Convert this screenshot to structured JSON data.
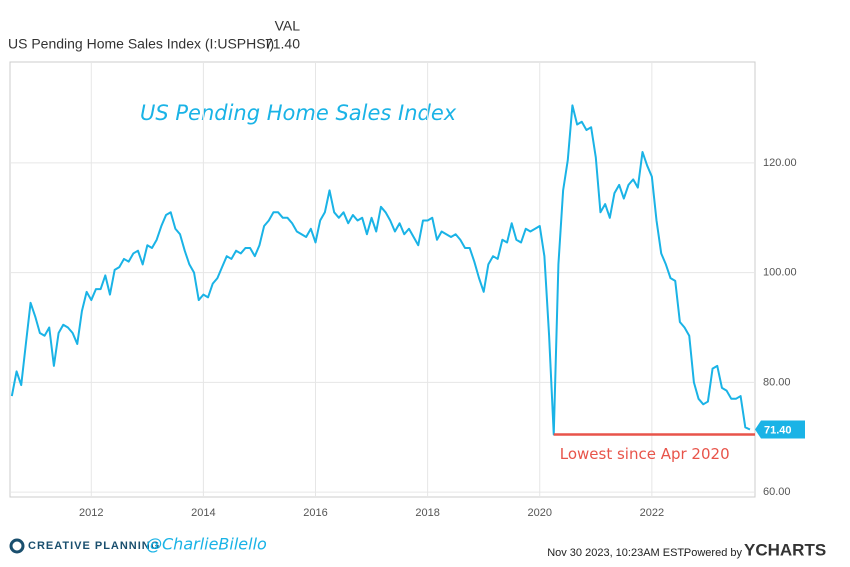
{
  "header": {
    "column": "VAL",
    "series_name": "US Pending Home Sales Index (I:USPHSI)"
  },
  "chart_data": {
    "type": "line",
    "title": "US Pending Home Sales Index",
    "x": [
      2010.583,
      2010.667,
      2010.75,
      2010.833,
      2010.917,
      2011,
      2011.083,
      2011.167,
      2011.25,
      2011.333,
      2011.417,
      2011.5,
      2011.583,
      2011.667,
      2011.75,
      2011.833,
      2011.917,
      2012,
      2012.083,
      2012.167,
      2012.25,
      2012.333,
      2012.417,
      2012.5,
      2012.583,
      2012.667,
      2012.75,
      2012.833,
      2012.917,
      2013,
      2013.083,
      2013.167,
      2013.25,
      2013.333,
      2013.417,
      2013.5,
      2013.583,
      2013.667,
      2013.75,
      2013.833,
      2013.917,
      2014,
      2014.083,
      2014.167,
      2014.25,
      2014.333,
      2014.417,
      2014.5,
      2014.583,
      2014.667,
      2014.75,
      2014.833,
      2014.917,
      2015,
      2015.083,
      2015.167,
      2015.25,
      2015.333,
      2015.417,
      2015.5,
      2015.583,
      2015.667,
      2015.75,
      2015.833,
      2015.917,
      2016,
      2016.083,
      2016.167,
      2016.25,
      2016.333,
      2016.417,
      2016.5,
      2016.583,
      2016.667,
      2016.75,
      2016.833,
      2016.917,
      2017,
      2017.083,
      2017.167,
      2017.25,
      2017.333,
      2017.417,
      2017.5,
      2017.583,
      2017.667,
      2017.75,
      2017.833,
      2017.917,
      2018,
      2018.083,
      2018.167,
      2018.25,
      2018.333,
      2018.417,
      2018.5,
      2018.583,
      2018.667,
      2018.75,
      2018.833,
      2018.917,
      2019,
      2019.083,
      2019.167,
      2019.25,
      2019.333,
      2019.417,
      2019.5,
      2019.583,
      2019.667,
      2019.75,
      2019.833,
      2019.917,
      2020,
      2020.083,
      2020.167,
      2020.25,
      2020.333,
      2020.417,
      2020.5,
      2020.583,
      2020.667,
      2020.75,
      2020.833,
      2020.917,
      2021,
      2021.083,
      2021.167,
      2021.25,
      2021.333,
      2021.417,
      2021.5,
      2021.583,
      2021.667,
      2021.75,
      2021.833,
      2021.917,
      2022,
      2022.083,
      2022.167,
      2022.25,
      2022.333,
      2022.417,
      2022.5,
      2022.583,
      2022.667,
      2022.75,
      2022.833,
      2022.917,
      2023,
      2023.083,
      2023.167,
      2023.25,
      2023.333,
      2023.417,
      2023.5,
      2023.583,
      2023.667,
      2023.75
    ],
    "series": [
      {
        "name": "US Pending Home Sales Index (I:USPHSI)",
        "color": "#1ab3e6",
        "values": [
          77.5,
          82,
          79.5,
          87,
          94.5,
          92,
          89,
          88.5,
          90,
          83,
          89,
          90.5,
          90,
          89,
          87,
          93,
          96.5,
          95,
          97,
          97,
          99.5,
          96,
          100.5,
          101,
          102.5,
          102,
          103.5,
          104,
          101.5,
          105,
          104.5,
          106,
          108.5,
          110.5,
          111,
          108,
          107,
          104,
          101.5,
          100,
          95,
          96,
          95.5,
          98,
          99,
          101,
          103,
          102.5,
          104,
          103.5,
          104.5,
          104.5,
          103,
          105,
          108.5,
          109.5,
          111,
          111,
          110,
          110,
          109,
          107.5,
          107,
          106.5,
          108,
          105.5,
          109.5,
          111,
          115,
          111,
          110,
          111,
          109,
          110.5,
          109.5,
          110,
          107,
          110,
          107.5,
          112,
          111,
          109.5,
          107.5,
          109,
          107,
          108,
          106.5,
          105,
          109.5,
          109.5,
          110,
          106,
          107.5,
          107,
          106.5,
          107,
          106,
          104.5,
          104.5,
          102,
          99,
          96.5,
          101.5,
          103,
          102.5,
          106,
          105.5,
          109,
          106,
          105.5,
          108,
          107.5,
          108,
          108.5,
          103,
          88.5,
          70.5,
          101.5,
          115,
          120.5,
          130.5,
          127,
          127.5,
          126,
          126.5,
          121,
          111,
          112.5,
          110,
          114.5,
          116,
          113.5,
          116,
          117,
          115.5,
          122,
          119.5,
          117.5,
          109.5,
          103.5,
          101.5,
          99,
          98.5,
          91,
          90,
          88.5,
          80,
          77,
          76,
          76.5,
          82.5,
          83,
          79,
          78.5,
          77,
          77,
          77.5,
          71.8,
          71.4
        ]
      }
    ],
    "last_label": "71.40",
    "xlim": [
      2010.55,
      2023.84
    ],
    "xticks": [
      2012,
      2014,
      2016,
      2018,
      2020,
      2022
    ],
    "ylim": [
      59.1,
      138.4
    ],
    "yticks": [
      {
        "value": 60,
        "label": "60.00"
      },
      {
        "value": 80,
        "label": "80.00"
      },
      {
        "value": 100,
        "label": "100.00"
      },
      {
        "value": 120,
        "label": "120.00"
      }
    ],
    "grid": true,
    "reference_line": {
      "value": 70.5,
      "x_start": 2020.25,
      "color": "#e8544a",
      "label": "Lowest since Apr 2020"
    }
  },
  "footer": {
    "brand": "CREATIVE PLANNING",
    "handle": "@CharlieBilello",
    "timestamp": "Nov 30 2023, 10:23AM EST.",
    "powered": "Powered by",
    "provider": "YCHARTS"
  }
}
